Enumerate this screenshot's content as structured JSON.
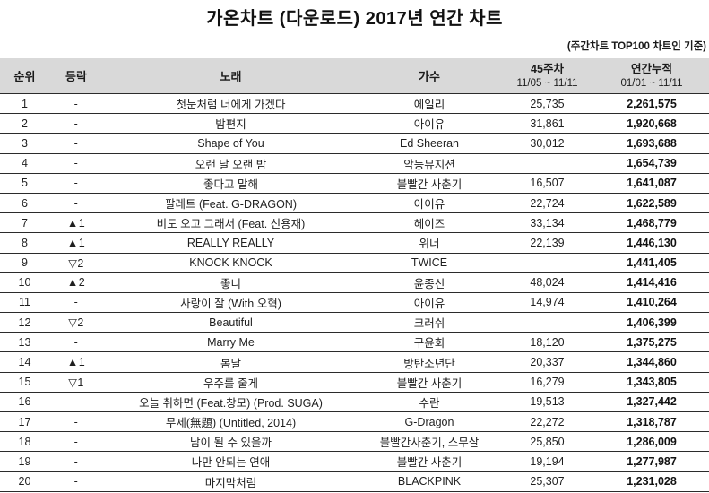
{
  "title": "가온차트 (다운로드) 2017년 연간 차트",
  "note": "(주간차트 TOP100 차트인 기준)",
  "table": {
    "headers": {
      "rank": "순위",
      "change": "등락",
      "song": "노래",
      "artist": "가수",
      "weekly_label": "45주차",
      "weekly_period": "11/05 ~ 11/11",
      "cumulative_label": "연간누적",
      "cumulative_period": "01/01 ~ 11/11"
    }
  },
  "chart_data": {
    "type": "table",
    "title": "가온차트 (다운로드) 2017년 연간 차트",
    "subtitle": "(주간차트 TOP100 차트인 기준)",
    "columns": [
      "순위",
      "등락",
      "노래",
      "가수",
      "45주차 (11/05 ~ 11/11)",
      "연간누적 (01/01 ~ 11/11)"
    ],
    "rows": [
      {
        "rank": "1",
        "change": "-",
        "song": "첫눈처럼 너에게 가겠다",
        "artist": "에일리",
        "weekly": "25,735",
        "cumulative": "2,261,575"
      },
      {
        "rank": "2",
        "change": "-",
        "song": "밤편지",
        "artist": "아이유",
        "weekly": "31,861",
        "cumulative": "1,920,668"
      },
      {
        "rank": "3",
        "change": "-",
        "song": "Shape of You",
        "artist": "Ed Sheeran",
        "weekly": "30,012",
        "cumulative": "1,693,688"
      },
      {
        "rank": "4",
        "change": "-",
        "song": "오랜 날 오랜 밤",
        "artist": "악동뮤지션",
        "weekly": "",
        "cumulative": "1,654,739"
      },
      {
        "rank": "5",
        "change": "-",
        "song": "좋다고 말해",
        "artist": "볼빨간 사춘기",
        "weekly": "16,507",
        "cumulative": "1,641,087"
      },
      {
        "rank": "6",
        "change": "-",
        "song": "팔레트 (Feat. G-DRAGON)",
        "artist": "아이유",
        "weekly": "22,724",
        "cumulative": "1,622,589"
      },
      {
        "rank": "7",
        "change": "▲1",
        "song": "비도 오고 그래서 (Feat. 신용재)",
        "artist": "헤이즈",
        "weekly": "33,134",
        "cumulative": "1,468,779"
      },
      {
        "rank": "8",
        "change": "▲1",
        "song": "REALLY REALLY",
        "artist": "위너",
        "weekly": "22,139",
        "cumulative": "1,446,130"
      },
      {
        "rank": "9",
        "change": "▽2",
        "song": "KNOCK KNOCK",
        "artist": "TWICE",
        "weekly": "",
        "cumulative": "1,441,405"
      },
      {
        "rank": "10",
        "change": "▲2",
        "song": "좋니",
        "artist": "윤종신",
        "weekly": "48,024",
        "cumulative": "1,414,416"
      },
      {
        "rank": "11",
        "change": "-",
        "song": "사랑이 잘 (With 오혁)",
        "artist": "아이유",
        "weekly": "14,974",
        "cumulative": "1,410,264"
      },
      {
        "rank": "12",
        "change": "▽2",
        "song": "Beautiful",
        "artist": "크러쉬",
        "weekly": "",
        "cumulative": "1,406,399"
      },
      {
        "rank": "13",
        "change": "-",
        "song": "Marry Me",
        "artist": "구윤회",
        "weekly": "18,120",
        "cumulative": "1,375,275"
      },
      {
        "rank": "14",
        "change": "▲1",
        "song": "봄날",
        "artist": "방탄소년단",
        "weekly": "20,337",
        "cumulative": "1,344,860"
      },
      {
        "rank": "15",
        "change": "▽1",
        "song": "우주를 줄게",
        "artist": "볼빨간 사춘기",
        "weekly": "16,279",
        "cumulative": "1,343,805"
      },
      {
        "rank": "16",
        "change": "-",
        "song": "오늘 취하면 (Feat.창모) (Prod. SUGA)",
        "artist": "수란",
        "weekly": "19,513",
        "cumulative": "1,327,442"
      },
      {
        "rank": "17",
        "change": "-",
        "song": "무제(無題) (Untitled, 2014)",
        "artist": "G-Dragon",
        "weekly": "22,272",
        "cumulative": "1,318,787"
      },
      {
        "rank": "18",
        "change": "-",
        "song": "남이 될 수 있을까",
        "artist": "볼빨간사춘기, 스무살",
        "weekly": "25,850",
        "cumulative": "1,286,009"
      },
      {
        "rank": "19",
        "change": "-",
        "song": "나만 안되는 연애",
        "artist": "볼빨간 사춘기",
        "weekly": "19,194",
        "cumulative": "1,277,987"
      },
      {
        "rank": "20",
        "change": "-",
        "song": "마지막처럼",
        "artist": "BLACKPINK",
        "weekly": "25,307",
        "cumulative": "1,231,028"
      }
    ],
    "header_bg_color": "#d9d9d9",
    "up_arrow_glyph": "▲",
    "down_arrow_glyph": "▽"
  }
}
